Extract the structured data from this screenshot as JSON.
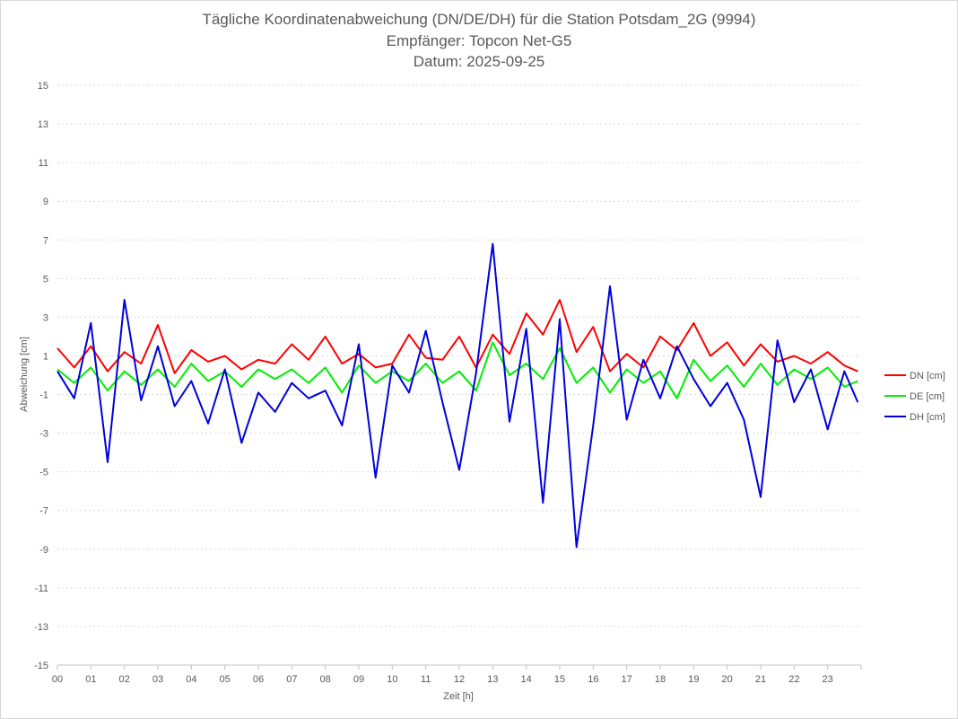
{
  "chart_data": {
    "type": "line",
    "title_lines": [
      "Tägliche Koordinatenabweichung (DN/DE/DH) für die Station Potsdam_2G (9994)",
      "Empfänger: Topcon Net-G5",
      "Datum: 2025-09-25"
    ],
    "xlabel": "Zeit [h]",
    "ylabel": "Abweichung [cm]",
    "x_tick_labels": [
      "00",
      "01",
      "02",
      "03",
      "04",
      "05",
      "06",
      "07",
      "08",
      "09",
      "10",
      "11",
      "12",
      "13",
      "14",
      "15",
      "16",
      "17",
      "18",
      "19",
      "20",
      "21",
      "22",
      "23"
    ],
    "xlim": [
      0,
      24
    ],
    "ylim": [
      -15,
      15
    ],
    "y_ticks": [
      15,
      13,
      11,
      9,
      7,
      5,
      3,
      1,
      -1,
      -3,
      -5,
      -7,
      -9,
      -11,
      -13,
      -15
    ],
    "y_tick_labels": [
      "15",
      "13",
      "11",
      "9",
      "7",
      "5",
      "3",
      "1",
      "-1",
      "-3",
      "-5",
      "-7",
      "-9",
      "-11",
      "-13",
      "-15"
    ],
    "grid": true,
    "legend_position": "right",
    "x_hours": [
      0,
      0.5,
      1,
      1.5,
      2,
      2.5,
      3,
      3.5,
      4,
      4.5,
      5,
      5.5,
      6,
      6.5,
      7,
      7.5,
      8,
      8.5,
      9,
      9.5,
      10,
      10.5,
      11,
      11.5,
      12,
      12.5,
      13,
      13.5,
      14,
      14.5,
      15,
      15.5,
      16,
      16.5,
      17,
      17.5,
      18,
      18.5,
      19,
      19.5,
      20,
      20.5,
      21,
      21.5,
      22,
      22.5,
      23,
      23.5,
      23.9
    ],
    "series": [
      {
        "name": "DN [cm]",
        "color": "#ff0000",
        "values": [
          1.4,
          0.4,
          1.5,
          0.2,
          1.2,
          0.6,
          2.6,
          0.1,
          1.3,
          0.7,
          1.0,
          0.3,
          0.8,
          0.6,
          1.6,
          0.8,
          2.0,
          0.6,
          1.1,
          0.4,
          0.6,
          2.1,
          0.9,
          0.8,
          2.0,
          0.4,
          2.1,
          1.1,
          3.2,
          2.1,
          3.9,
          1.2,
          2.5,
          0.2,
          1.1,
          0.4,
          2.0,
          1.3,
          2.7,
          1.0,
          1.7,
          0.5,
          1.6,
          0.7,
          1.0,
          0.6,
          1.2,
          0.5,
          0.2
        ]
      },
      {
        "name": "DE [cm]",
        "color": "#00ee00",
        "values": [
          0.3,
          -0.4,
          0.4,
          -0.8,
          0.2,
          -0.5,
          0.3,
          -0.6,
          0.6,
          -0.3,
          0.2,
          -0.6,
          0.3,
          -0.2,
          0.3,
          -0.4,
          0.4,
          -0.9,
          0.5,
          -0.4,
          0.2,
          -0.3,
          0.6,
          -0.4,
          0.2,
          -0.8,
          1.7,
          0.0,
          0.6,
          -0.2,
          1.4,
          -0.4,
          0.4,
          -0.9,
          0.3,
          -0.4,
          0.2,
          -1.2,
          0.8,
          -0.3,
          0.5,
          -0.6,
          0.6,
          -0.5,
          0.3,
          -0.2,
          0.4,
          -0.6,
          -0.3
        ]
      },
      {
        "name": "DH [cm]",
        "color": "#0000dd",
        "values": [
          0.2,
          -1.2,
          2.7,
          -4.5,
          3.9,
          -1.3,
          1.5,
          -1.6,
          -0.3,
          -2.5,
          0.3,
          -3.5,
          -0.9,
          -1.9,
          -0.4,
          -1.2,
          -0.8,
          -2.6,
          1.6,
          -5.3,
          0.5,
          -0.9,
          2.3,
          -1.4,
          -4.9,
          0.1,
          6.8,
          -2.4,
          2.4,
          -6.6,
          2.9,
          -8.9,
          -2.6,
          4.6,
          -2.3,
          0.8,
          -1.2,
          1.5,
          -0.2,
          -1.6,
          -0.4,
          -2.3,
          -6.3,
          1.8,
          -1.4,
          0.3,
          -2.8,
          0.2,
          -1.4
        ]
      }
    ]
  }
}
